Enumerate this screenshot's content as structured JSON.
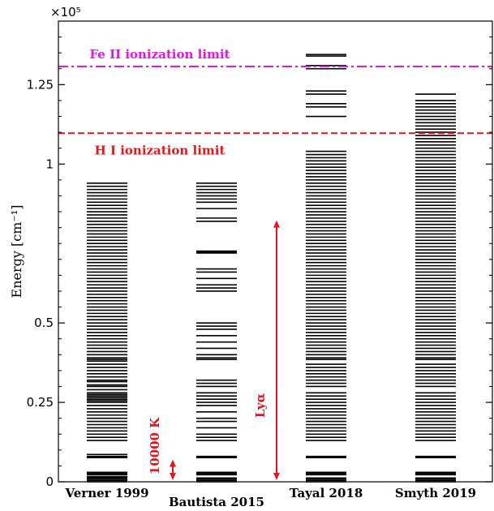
{
  "chart_data": {
    "type": "energy-level-diagram",
    "ylabel": "Energy [cm⁻¹]",
    "y_exponent_label": "×10⁵",
    "ylim": [
      0,
      1.45
    ],
    "y_ticks": [
      {
        "value": 0,
        "label": "0"
      },
      {
        "value": 0.25,
        "label": "0.25"
      },
      {
        "value": 0.5,
        "label": "0.5"
      },
      {
        "value": 1,
        "label": "1"
      },
      {
        "value": 1.25,
        "label": "1.25"
      }
    ],
    "y_minor_ticks": [
      0.05,
      0.1,
      0.15,
      0.2,
      0.3,
      0.35,
      0.4,
      0.45,
      0.55,
      0.6,
      0.65,
      0.7,
      0.75,
      0.8,
      0.85,
      0.9,
      0.95,
      1.05,
      1.1,
      1.15,
      1.2,
      1.3,
      1.35,
      1.4
    ],
    "categories": [
      "Verner 1999",
      "Bautista 2015",
      "Tayal 2018",
      "Smyth 2019"
    ],
    "category_label_stagger": [
      "low",
      "high",
      "low",
      "low"
    ],
    "reference_lines": [
      {
        "name": "Fe II ionization limit",
        "value": 1.307,
        "color": "#e614e6",
        "style": "dashdot"
      },
      {
        "name": "H I ionization limit",
        "value": 1.097,
        "color": "#e8141c",
        "style": "dashed"
      }
    ],
    "annotations": [
      {
        "text": "10000 K",
        "from": 0.0,
        "to": 0.07,
        "color": "#e8141c"
      },
      {
        "text": "Lyα",
        "from": 0.0,
        "to": 0.823,
        "color": "#e8141c"
      }
    ],
    "levels": [
      [
        0,
        0.004,
        0.008,
        0.012,
        0.016,
        0.022,
        0.026,
        0.03,
        0.076,
        0.08,
        0.086,
        0.13,
        0.14,
        0.15,
        0.16,
        0.17,
        0.18,
        0.19,
        0.2,
        0.21,
        0.22,
        0.23,
        0.24,
        0.25,
        0.255,
        0.26,
        0.265,
        0.27,
        0.275,
        0.28,
        0.29,
        0.3,
        0.305,
        0.315,
        0.32,
        0.33,
        0.34,
        0.35,
        0.36,
        0.37,
        0.38,
        0.385,
        0.39,
        0.4,
        0.41,
        0.42,
        0.43,
        0.44,
        0.45,
        0.46,
        0.47,
        0.48,
        0.49,
        0.5,
        0.51,
        0.52,
        0.53,
        0.54,
        0.55,
        0.56,
        0.57,
        0.58,
        0.59,
        0.6,
        0.61,
        0.62,
        0.63,
        0.64,
        0.65,
        0.66,
        0.67,
        0.68,
        0.69,
        0.7,
        0.71,
        0.72,
        0.73,
        0.74,
        0.75,
        0.76,
        0.77,
        0.78,
        0.79,
        0.8,
        0.81,
        0.82,
        0.83,
        0.84,
        0.85,
        0.86,
        0.87,
        0.88,
        0.89,
        0.9,
        0.91,
        0.92,
        0.93,
        0.94
      ],
      [
        0,
        0.004,
        0.008,
        0.012,
        0.022,
        0.026,
        0.03,
        0.076,
        0.08,
        0.13,
        0.14,
        0.15,
        0.17,
        0.19,
        0.2,
        0.22,
        0.24,
        0.25,
        0.26,
        0.27,
        0.28,
        0.3,
        0.31,
        0.32,
        0.385,
        0.39,
        0.4,
        0.42,
        0.44,
        0.46,
        0.48,
        0.49,
        0.5,
        0.6,
        0.61,
        0.62,
        0.64,
        0.66,
        0.67,
        0.72,
        0.723,
        0.726,
        0.82,
        0.83,
        0.86,
        0.88,
        0.89,
        0.9,
        0.91,
        0.92,
        0.93,
        0.94
      ],
      [
        0,
        0.004,
        0.008,
        0.012,
        0.022,
        0.026,
        0.03,
        0.076,
        0.08,
        0.13,
        0.14,
        0.15,
        0.16,
        0.17,
        0.18,
        0.19,
        0.2,
        0.21,
        0.22,
        0.23,
        0.24,
        0.25,
        0.26,
        0.27,
        0.28,
        0.3,
        0.31,
        0.32,
        0.33,
        0.34,
        0.35,
        0.36,
        0.37,
        0.385,
        0.39,
        0.4,
        0.41,
        0.42,
        0.43,
        0.44,
        0.45,
        0.46,
        0.47,
        0.48,
        0.49,
        0.5,
        0.51,
        0.52,
        0.53,
        0.54,
        0.55,
        0.56,
        0.57,
        0.58,
        0.59,
        0.6,
        0.61,
        0.62,
        0.63,
        0.64,
        0.65,
        0.66,
        0.67,
        0.68,
        0.69,
        0.7,
        0.71,
        0.72,
        0.73,
        0.74,
        0.75,
        0.76,
        0.77,
        0.78,
        0.79,
        0.8,
        0.81,
        0.82,
        0.83,
        0.84,
        0.85,
        0.86,
        0.87,
        0.88,
        0.89,
        0.9,
        0.91,
        0.92,
        0.93,
        0.94,
        0.95,
        0.96,
        0.97,
        0.98,
        0.99,
        1.0,
        1.01,
        1.02,
        1.03,
        1.04,
        1.15,
        1.18,
        1.19,
        1.22,
        1.23,
        1.3,
        1.31,
        1.34,
        1.345
      ],
      [
        0,
        0.004,
        0.008,
        0.012,
        0.022,
        0.026,
        0.03,
        0.076,
        0.08,
        0.13,
        0.14,
        0.15,
        0.16,
        0.17,
        0.18,
        0.19,
        0.2,
        0.21,
        0.22,
        0.23,
        0.24,
        0.25,
        0.26,
        0.27,
        0.28,
        0.3,
        0.31,
        0.32,
        0.33,
        0.34,
        0.35,
        0.36,
        0.37,
        0.385,
        0.39,
        0.4,
        0.41,
        0.42,
        0.43,
        0.44,
        0.45,
        0.46,
        0.47,
        0.48,
        0.49,
        0.5,
        0.51,
        0.52,
        0.53,
        0.54,
        0.55,
        0.56,
        0.57,
        0.58,
        0.59,
        0.6,
        0.61,
        0.62,
        0.63,
        0.64,
        0.65,
        0.66,
        0.67,
        0.68,
        0.69,
        0.7,
        0.71,
        0.72,
        0.73,
        0.74,
        0.75,
        0.76,
        0.77,
        0.78,
        0.79,
        0.8,
        0.81,
        0.82,
        0.83,
        0.84,
        0.85,
        0.86,
        0.87,
        0.88,
        0.89,
        0.9,
        0.91,
        0.92,
        0.93,
        0.94,
        0.95,
        0.96,
        0.97,
        0.98,
        0.99,
        1.0,
        1.01,
        1.02,
        1.03,
        1.04,
        1.05,
        1.06,
        1.07,
        1.08,
        1.09,
        1.1,
        1.11,
        1.12,
        1.13,
        1.14,
        1.15,
        1.16,
        1.17,
        1.18,
        1.19,
        1.2,
        1.22
      ]
    ]
  }
}
